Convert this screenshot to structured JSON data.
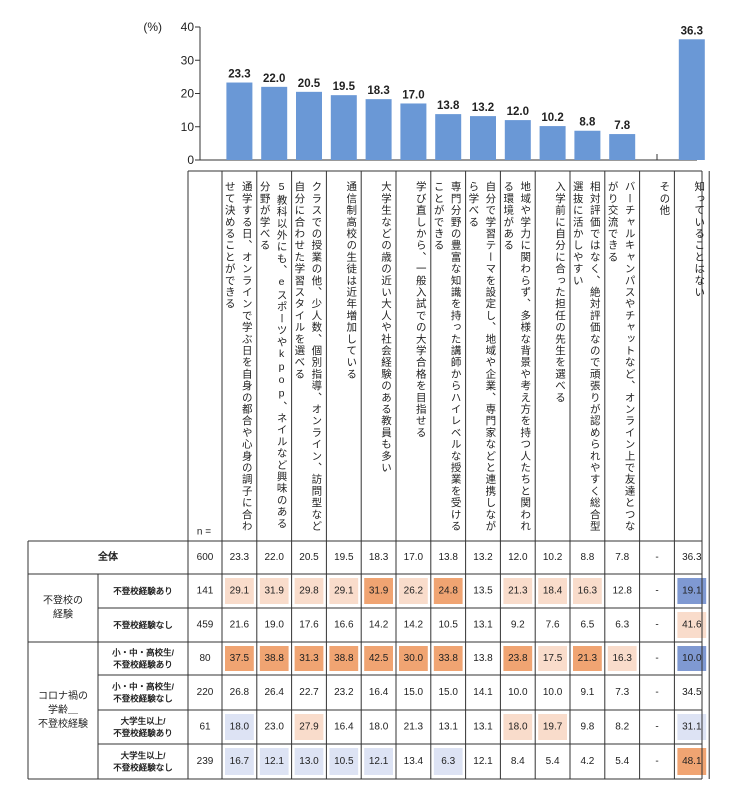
{
  "chart_data": {
    "type": "bar",
    "y_unit": "(%)",
    "ylim": [
      0,
      40
    ],
    "yticks": [
      "0",
      "10",
      "20",
      "30",
      "40"
    ],
    "n_label": "n =",
    "categories": [
      "通学する日、オンラインで学ぶ日を自身の都合や心身の調子に合わせて決めることができる",
      "5教科以外にも、eスポーツやkpop、ネイルなど興味のある分野が学べる",
      "クラスでの授業の他、少人数、個別指導、オンライン、訪問型など自分に合わせた学習スタイルを選べる",
      "通信制高校の生徒は近年増加している",
      "大学生などの歳の近い大人や社会経験のある教員も多い",
      "学び直しから、一般入試での大学合格を目指せる",
      "専門分野の豊富な知識を持った講師からハイレベルな授業を受けることができる",
      "自分で学習テーマを設定し、地域や企業、専門家などと連携しながら学べる",
      "地域や学力に関わらず、多様な背景や考え方を持つ人たちと関われる環境がある",
      "入学前に自分に合った担任の先生を選べる",
      "相対評価ではなく、絶対評価なので頑張りが認められやすく総合型選抜に活かしやすい",
      "バーチャルキャンパスやチャットなど、オンライン上で友達とつながり交流できる",
      "その他",
      "知っていることはない"
    ],
    "values": [
      23.3,
      22.0,
      20.5,
      19.5,
      18.3,
      17.0,
      13.8,
      13.2,
      12.0,
      10.2,
      8.8,
      7.8,
      null,
      36.3
    ],
    "value_labels": [
      "23.3",
      "22.0",
      "20.5",
      "19.5",
      "18.3",
      "17.0",
      "13.8",
      "13.2",
      "12.0",
      "10.2",
      "8.8",
      "7.8",
      "",
      "36.3"
    ],
    "bar_color": "#6a98d6",
    "table": {
      "total": {
        "label": "全体",
        "n": "600",
        "cells": [
          "23.3",
          "22.0",
          "20.5",
          "19.5",
          "18.3",
          "17.0",
          "13.8",
          "13.2",
          "12.0",
          "10.2",
          "8.8",
          "7.8",
          "-",
          "36.3"
        ],
        "shade": [
          0,
          0,
          0,
          0,
          0,
          0,
          0,
          0,
          0,
          0,
          0,
          0,
          0,
          0
        ]
      },
      "groups": [
        {
          "label": "不登校の\n経験",
          "rows": [
            {
              "label": "不登校経験あり",
              "n": "141",
              "cells": [
                "29.1",
                "31.9",
                "29.8",
                "29.1",
                "31.9",
                "26.2",
                "24.8",
                "13.5",
                "21.3",
                "18.4",
                "16.3",
                "12.8",
                "-",
                "19.1"
              ],
              "shade": [
                1,
                1,
                1,
                1,
                2,
                1,
                2,
                0,
                1,
                1,
                1,
                0,
                0,
                -2
              ]
            },
            {
              "label": "不登校経験なし",
              "n": "459",
              "cells": [
                "21.6",
                "19.0",
                "17.6",
                "16.6",
                "14.2",
                "14.2",
                "10.5",
                "13.1",
                "9.2",
                "7.6",
                "6.5",
                "6.3",
                "-",
                "41.6"
              ],
              "shade": [
                0,
                0,
                0,
                0,
                0,
                0,
                0,
                0,
                0,
                0,
                0,
                0,
                0,
                1
              ]
            }
          ]
        },
        {
          "label": "コロナ禍の\n学齢＿\n不登校経験",
          "rows": [
            {
              "label": "小・中・高校生/\n不登校経験あり",
              "n": "80",
              "cells": [
                "37.5",
                "38.8",
                "31.3",
                "38.8",
                "42.5",
                "30.0",
                "33.8",
                "13.8",
                "23.8",
                "17.5",
                "21.3",
                "16.3",
                "-",
                "10.0"
              ],
              "shade": [
                2,
                2,
                2,
                2,
                2,
                2,
                2,
                0,
                2,
                1,
                2,
                1,
                0,
                -2
              ]
            },
            {
              "label": "小・中・高校生/\n不登校経験なし",
              "n": "220",
              "cells": [
                "26.8",
                "26.4",
                "22.7",
                "23.2",
                "16.4",
                "15.0",
                "15.0",
                "14.1",
                "10.0",
                "10.0",
                "9.1",
                "7.3",
                "-",
                "34.5"
              ],
              "shade": [
                0,
                0,
                0,
                0,
                0,
                0,
                0,
                0,
                0,
                0,
                0,
                0,
                0,
                0
              ]
            },
            {
              "label": "大学生以上/\n不登校経験あり",
              "n": "61",
              "cells": [
                "18.0",
                "23.0",
                "27.9",
                "16.4",
                "18.0",
                "21.3",
                "13.1",
                "13.1",
                "18.0",
                "19.7",
                "9.8",
                "8.2",
                "-",
                "31.1"
              ],
              "shade": [
                -1,
                0,
                1,
                0,
                0,
                0,
                0,
                0,
                1,
                1,
                0,
                0,
                0,
                -1
              ]
            },
            {
              "label": "大学生以上/\n不登校経験なし",
              "n": "239",
              "cells": [
                "16.7",
                "12.1",
                "13.0",
                "10.5",
                "12.1",
                "13.4",
                "6.3",
                "12.1",
                "8.4",
                "5.4",
                "4.2",
                "5.4",
                "-",
                "48.1"
              ],
              "shade": [
                -1,
                -1,
                -1,
                -1,
                -1,
                0,
                -1,
                0,
                0,
                0,
                0,
                0,
                0,
                2
              ]
            }
          ]
        }
      ],
      "shade_colors": {
        "2": "#f0a472",
        "1": "#f9dccb",
        "0": "#ffffff",
        "-1": "#dde3f4",
        "-2": "#7f99d2"
      }
    }
  }
}
